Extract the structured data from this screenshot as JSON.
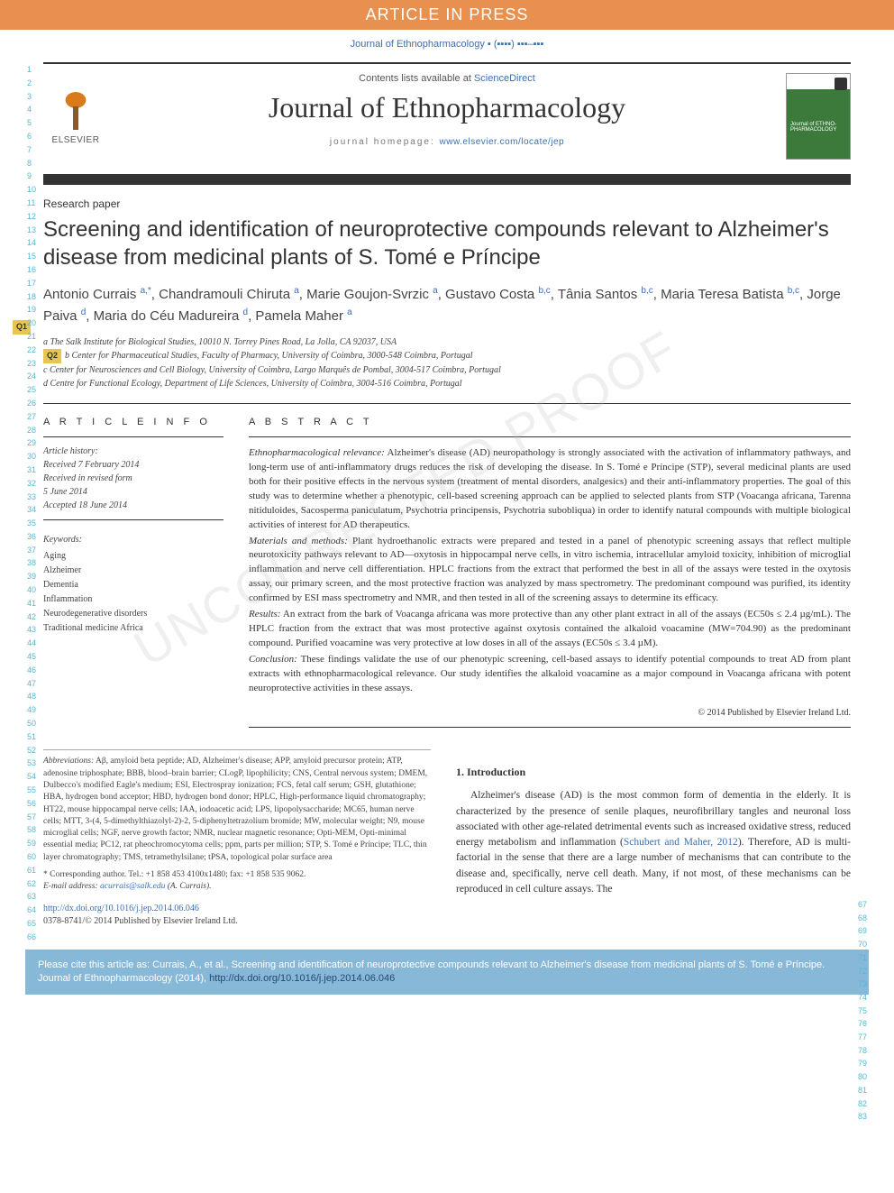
{
  "banner": "ARTICLE IN PRESS",
  "top_cite": "Journal of Ethnopharmacology ▪ (▪▪▪▪) ▪▪▪–▪▪▪",
  "header": {
    "contents_pre": "Contents lists available at ",
    "contents_link": "ScienceDirect",
    "journal_name": "Journal of Ethnopharmacology",
    "homepage_pre": "journal homepage: ",
    "homepage_link": "www.elsevier.com/locate/jep",
    "publisher_logo_text": "ELSEVIER",
    "cover_text": "Journal of ETHNO-PHARMACOLOGY"
  },
  "article_type": "Research paper",
  "title": "Screening and identification of neuroprotective compounds relevant to Alzheimer's disease from medicinal plants of S. Tomé e Príncipe",
  "authors_html": "Antonio Currais <span class='sup'>a,*</span>, Chandramouli Chiruta <span class='sup'>a</span>, Marie Goujon-Svrzic <span class='sup'>a</span>, Gustavo Costa <span class='sup'>b,c</span>, Tânia Santos <span class='sup'>b,c</span>, Maria Teresa Batista <span class='sup'>b,c</span>, Jorge Paiva <span class='sup'>d</span>, Maria do Céu Madureira <span class='sup'>d</span>, Pamela Maher <span class='sup'>a</span>",
  "q_badges": {
    "q1": "Q1",
    "q2": "Q2"
  },
  "affiliations": {
    "a": "a The Salk Institute for Biological Studies, 10010 N. Torrey Pines Road, La Jolla, CA 92037, USA",
    "b": "b Center for Pharmaceutical Studies, Faculty of Pharmacy, University of Coimbra, 3000-548 Coimbra, Portugal",
    "c": "c Center for Neurosciences and Cell Biology, University of Coimbra, Largo Marquês de Pombal, 3004-517 Coimbra, Portugal",
    "d": "d Centre for Functional Ecology, Department of Life Sciences, University of Coimbra, 3004-516 Coimbra, Portugal"
  },
  "article_info": {
    "header": "A R T I C L E  I N F O",
    "history_hdr": "Article history:",
    "received": "Received 7 February 2014",
    "revised_a": "Received in revised form",
    "revised_b": "5 June 2014",
    "accepted": "Accepted 18 June 2014",
    "kw_hdr": "Keywords:",
    "keywords": [
      "Aging",
      "Alzheimer",
      "Dementia",
      "Inflammation",
      "Neurodegenerative disorders",
      "Traditional medicine Africa"
    ]
  },
  "abstract": {
    "header": "A B S T R A C T",
    "p1_label": "Ethnopharmacological relevance:",
    "p1": " Alzheimer's disease (AD) neuropathology is strongly associated with the activation of inflammatory pathways, and long-term use of anti-inflammatory drugs reduces the risk of developing the disease. In S. Tomé e Príncipe (STP), several medicinal plants are used both for their positive effects in the nervous system (treatment of mental disorders, analgesics) and their anti-inflammatory properties. The goal of this study was to determine whether a phenotypic, cell-based screening approach can be applied to selected plants from STP (Voacanga africana, Tarenna nitiduloides, Sacosperma paniculatum, Psychotria principensis, Psychotria subobliqua) in order to identify natural compounds with multiple biological activities of interest for AD therapeutics.",
    "p2_label": "Materials and methods:",
    "p2": " Plant hydroethanolic extracts were prepared and tested in a panel of phenotypic screening assays that reflect multiple neurotoxicity pathways relevant to AD—oxytosis in hippocampal nerve cells, in vitro ischemia, intracellular amyloid toxicity, inhibition of microglial inflammation and nerve cell differentiation. HPLC fractions from the extract that performed the best in all of the assays were tested in the oxytosis assay, our primary screen, and the most protective fraction was analyzed by mass spectrometry. The predominant compound was purified, its identity confirmed by ESI mass spectrometry and NMR, and then tested in all of the screening assays to determine its efficacy.",
    "p3_label": "Results:",
    "p3": " An extract from the bark of Voacanga africana was more protective than any other plant extract in all of the assays (EC50s ≤ 2.4 µg/mL). The HPLC fraction from the extract that was most protective against oxytosis contained the alkaloid voacamine (MW=704.90) as the predominant compound. Purified voacamine was very protective at low doses in all of the assays (EC50s ≤ 3.4 µM).",
    "p4_label": "Conclusion:",
    "p4": " These findings validate the use of our phenotypic screening, cell-based assays to identify potential compounds to treat AD from plant extracts with ethnopharmacological relevance. Our study identifies the alkaloid voacamine as a major compound in Voacanga africana with potent neuroprotective activities in these assays.",
    "copyright": "© 2014 Published by Elsevier Ireland Ltd."
  },
  "abbreviations": {
    "hdr": "Abbreviations:",
    "text": " Aβ, amyloid beta peptide; AD, Alzheimer's disease; APP, amyloid precursor protein; ATP, adenosine triphosphate; BBB, blood–brain barrier; CLogP, lipophilicity; CNS, Central nervous system; DMEM, Dulbecco's modified Eagle's medium; ESI, Electrospray ionization; FCS, fetal calf serum; GSH, glutathione; HBA, hydrogen bond acceptor; HBD, hydrogen bond donor; HPLC, High-performance liquid chromatography; HT22, mouse hippocampal nerve cells; IAA, iodoacetic acid; LPS, lipopolysaccharide; MC65, human nerve cells; MTT, 3-(4, 5-dimethylthiazolyl-2)-2, 5-diphenyltetrazolium bromide; MW, molecular weight; N9, mouse microglial cells; NGF, nerve growth factor; NMR, nuclear magnetic resonance; Opti-MEM, Opti-minimal essential media; PC12, rat pheochromocytoma cells; ppm, parts per million; STP, S. Tomé e Príncipe; TLC, thin layer chromatography; TMS, tetramethylsilane; tPSA, topological polar surface area",
    "corr_hdr": "* Corresponding author.",
    "corr_tel": " Tel.: +1 858 453 4100x1480; fax: +1 858 535 9062.",
    "email_hdr": "E-mail address: ",
    "email": "acurrais@salk.edu",
    "email_tail": " (A. Currais)."
  },
  "doi": {
    "link": "http://dx.doi.org/10.1016/j.jep.2014.06.046",
    "issn": "0378-8741/© 2014 Published by Elsevier Ireland Ltd."
  },
  "intro": {
    "num": "1.",
    "hdr": " Introduction",
    "body_pre": "Alzheimer's disease (AD) is the most common form of dementia in the elderly. It is characterized by the presence of senile plaques, neurofibrillary tangles and neuronal loss associated with other age-related detrimental events such as increased oxidative stress, reduced energy metabolism and inflammation (",
    "body_link": "Schubert and Maher, 2012",
    "body_post": "). Therefore, AD is multi-factorial in the sense that there are a large number of mechanisms that can contribute to the disease and, specifically, nerve cell death. Many, if not most, of these mechanisms can be reproduced in cell culture assays. The"
  },
  "cite_footer": {
    "pre": "Please cite this article as: Currais, A., et al., Screening and identification of neuroprotective compounds relevant to Alzheimer's disease from medicinal plants of S. Tomé e Príncipe. Journal of Ethnopharmacology (2014), ",
    "link": "http://dx.doi.org/10.1016/j.jep.2014.06.046"
  },
  "watermark": "UNCORRECTED PROOF",
  "line_numbers": {
    "left_start": 1,
    "left_end": 66,
    "right_start": 67,
    "right_end": 83
  },
  "colors": {
    "banner_bg": "#e89050",
    "link": "#3b6fb0",
    "line_num": "#54b8d4",
    "footer_bg": "#88b8d8",
    "q_badge_bg": "#e8c450",
    "rule": "#333333"
  }
}
